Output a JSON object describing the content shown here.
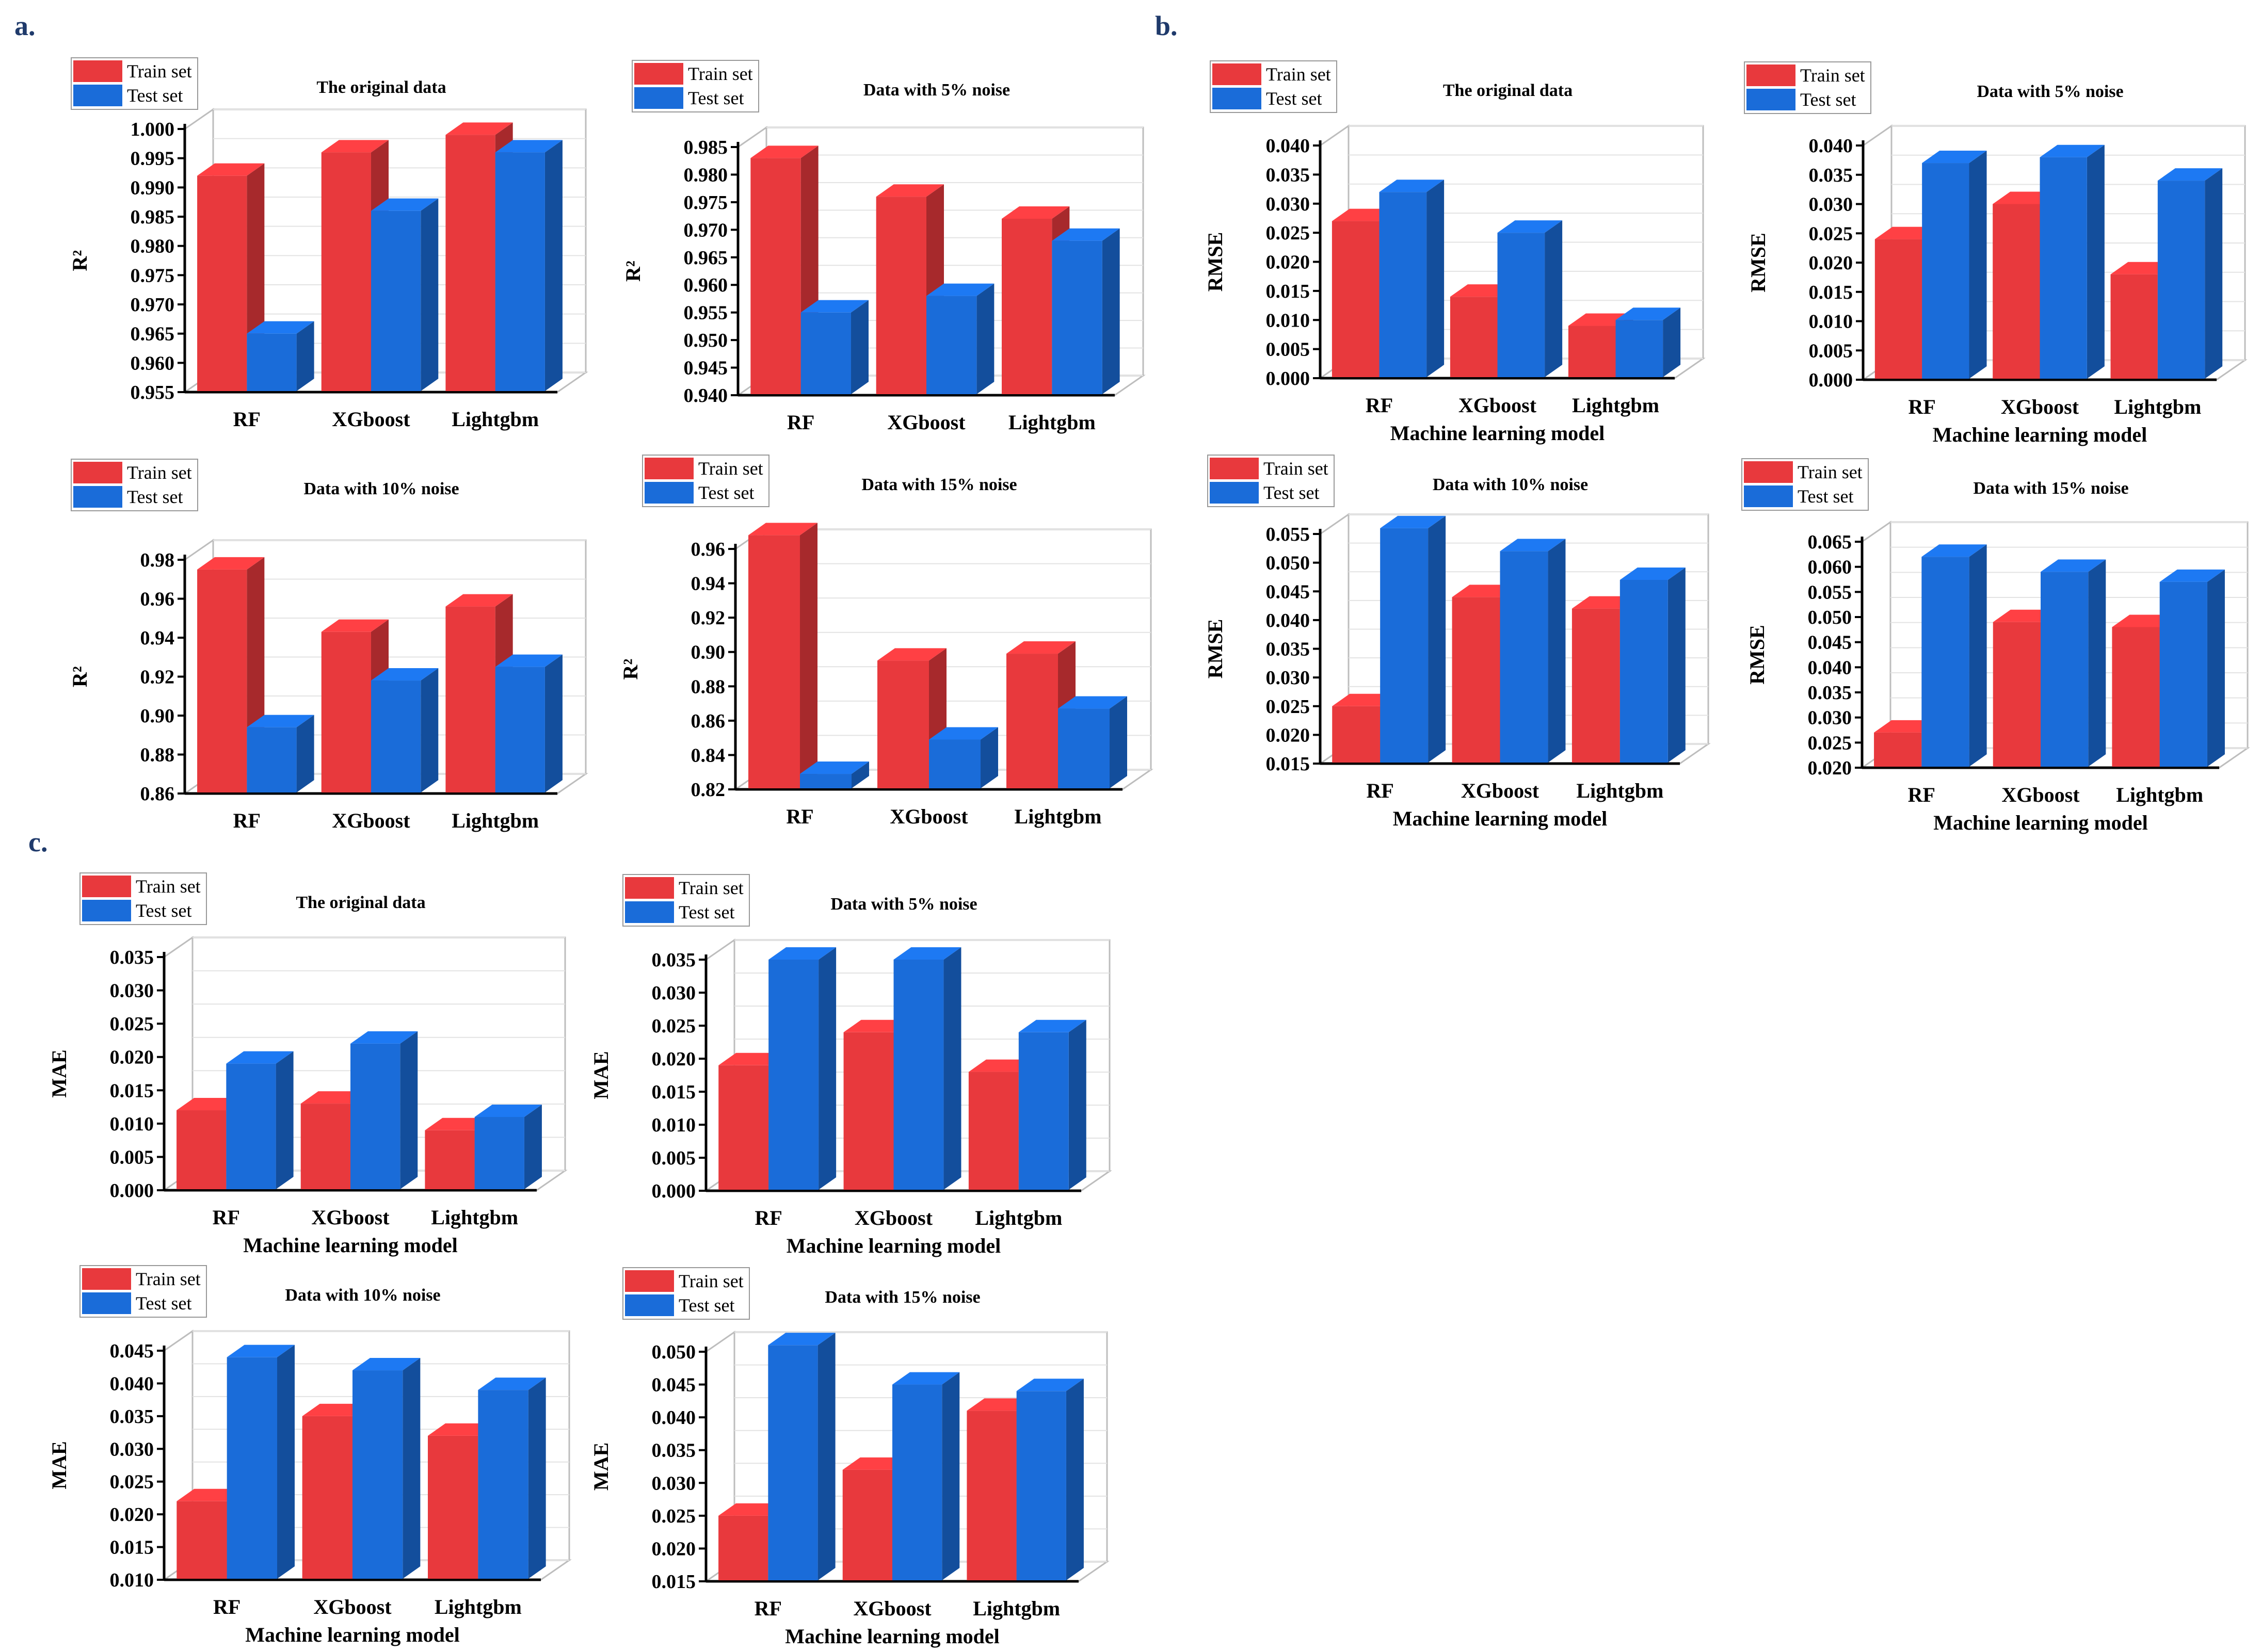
{
  "colors": {
    "train": "#E8393D",
    "test": "#1A6CD9",
    "panel_label": "#1F3A6B"
  },
  "panel_labels": [
    "a.",
    "b.",
    "c."
  ],
  "legend": {
    "train": "Train set",
    "test": "Test set"
  },
  "chart_data": [
    {
      "id": "a1",
      "type": "bar",
      "title": "The original data",
      "xlabel": "",
      "ylabel": "R²",
      "categories": [
        "RF",
        "XGboost",
        "Lightgbm"
      ],
      "ylim": [
        0.955,
        1.0
      ],
      "yticks": [
        "0.955",
        "0.960",
        "0.965",
        "0.970",
        "0.975",
        "0.980",
        "0.985",
        "0.990",
        "0.995",
        "1.000"
      ],
      "series": [
        {
          "name": "Train set",
          "values": [
            0.992,
            0.996,
            0.999
          ]
        },
        {
          "name": "Test set",
          "values": [
            0.965,
            0.986,
            0.996
          ]
        }
      ]
    },
    {
      "id": "a2",
      "type": "bar",
      "title": "Data with 5% noise",
      "xlabel": "",
      "ylabel": "R²",
      "categories": [
        "RF",
        "XGboost",
        "Lightgbm"
      ],
      "ylim": [
        0.94,
        0.985
      ],
      "yticks": [
        "0.940",
        "0.945",
        "0.950",
        "0.955",
        "0.960",
        "0.965",
        "0.970",
        "0.975",
        "0.980",
        "0.985"
      ],
      "series": [
        {
          "name": "Train set",
          "values": [
            0.983,
            0.976,
            0.972
          ]
        },
        {
          "name": "Test set",
          "values": [
            0.955,
            0.958,
            0.968
          ]
        }
      ]
    },
    {
      "id": "a3",
      "type": "bar",
      "title": "Data with 10% noise",
      "xlabel": "",
      "ylabel": "R²",
      "categories": [
        "RF",
        "XGboost",
        "Lightgbm"
      ],
      "ylim": [
        0.86,
        0.98
      ],
      "yticks": [
        "0.86",
        "0.88",
        "0.90",
        "0.92",
        "0.94",
        "0.96",
        "0.98"
      ],
      "series": [
        {
          "name": "Train set",
          "values": [
            0.975,
            0.943,
            0.956
          ]
        },
        {
          "name": "Test set",
          "values": [
            0.894,
            0.918,
            0.925
          ]
        }
      ]
    },
    {
      "id": "a4",
      "type": "bar",
      "title": "Data with 15% noise",
      "xlabel": "",
      "ylabel": "R²",
      "categories": [
        "RF",
        "XGboost",
        "Lightgbm"
      ],
      "ylim": [
        0.82,
        0.96
      ],
      "yticks": [
        "0.82",
        "0.84",
        "0.86",
        "0.88",
        "0.90",
        "0.92",
        "0.94",
        "0.96"
      ],
      "series": [
        {
          "name": "Train set",
          "values": [
            0.968,
            0.895,
            0.899
          ]
        },
        {
          "name": "Test set",
          "values": [
            0.829,
            0.849,
            0.867
          ]
        }
      ]
    },
    {
      "id": "b1",
      "type": "bar",
      "title": "The original data",
      "xlabel": "Machine learning model",
      "ylabel": "RMSE",
      "categories": [
        "RF",
        "XGboost",
        "Lightgbm"
      ],
      "ylim": [
        0,
        0.04
      ],
      "yticks": [
        "0.000",
        "0.005",
        "0.010",
        "0.015",
        "0.020",
        "0.025",
        "0.030",
        "0.035",
        "0.040"
      ],
      "series": [
        {
          "name": "Train set",
          "values": [
            0.027,
            0.014,
            0.009
          ]
        },
        {
          "name": "Test set",
          "values": [
            0.032,
            0.025,
            0.01
          ]
        }
      ]
    },
    {
      "id": "b2",
      "type": "bar",
      "title": "Data with 5% noise",
      "xlabel": "Machine learning model",
      "ylabel": "RMSE",
      "categories": [
        "RF",
        "XGboost",
        "Lightgbm"
      ],
      "ylim": [
        0,
        0.04
      ],
      "yticks": [
        "0.000",
        "0.005",
        "0.010",
        "0.015",
        "0.020",
        "0.025",
        "0.030",
        "0.035",
        "0.040"
      ],
      "series": [
        {
          "name": "Train set",
          "values": [
            0.024,
            0.03,
            0.018
          ]
        },
        {
          "name": "Test set",
          "values": [
            0.037,
            0.038,
            0.034
          ]
        }
      ]
    },
    {
      "id": "b3",
      "type": "bar",
      "title": "Data with 10% noise",
      "xlabel": "Machine learning model",
      "ylabel": "RMSE",
      "categories": [
        "RF",
        "XGboost",
        "Lightgbm"
      ],
      "ylim": [
        0.015,
        0.055
      ],
      "yticks": [
        "0.015",
        "0.020",
        "0.025",
        "0.030",
        "0.035",
        "0.040",
        "0.045",
        "0.050",
        "0.055"
      ],
      "series": [
        {
          "name": "Train set",
          "values": [
            0.025,
            0.044,
            0.042
          ]
        },
        {
          "name": "Test set",
          "values": [
            0.056,
            0.052,
            0.047
          ]
        }
      ]
    },
    {
      "id": "b4",
      "type": "bar",
      "title": "Data with 15% noise",
      "xlabel": "Machine learning model",
      "ylabel": "RMSE",
      "categories": [
        "RF",
        "XGboost",
        "Lightgbm"
      ],
      "ylim": [
        0.02,
        0.065
      ],
      "yticks": [
        "0.020",
        "0.025",
        "0.030",
        "0.035",
        "0.040",
        "0.045",
        "0.050",
        "0.055",
        "0.060",
        "0.065"
      ],
      "series": [
        {
          "name": "Train set",
          "values": [
            0.027,
            0.049,
            0.048
          ]
        },
        {
          "name": "Test set",
          "values": [
            0.062,
            0.059,
            0.057
          ]
        }
      ]
    },
    {
      "id": "c1",
      "type": "bar",
      "title": "The original data",
      "xlabel": "Machine learning model",
      "ylabel": "MAE",
      "categories": [
        "RF",
        "XGboost",
        "Lightgbm"
      ],
      "ylim": [
        0,
        0.035
      ],
      "yticks": [
        "0.000",
        "0.005",
        "0.010",
        "0.015",
        "0.020",
        "0.025",
        "0.030",
        "0.035"
      ],
      "series": [
        {
          "name": "Train set",
          "values": [
            0.012,
            0.013,
            0.009
          ]
        },
        {
          "name": "Test set",
          "values": [
            0.019,
            0.022,
            0.011
          ]
        }
      ]
    },
    {
      "id": "c2",
      "type": "bar",
      "title": "Data with 5% noise",
      "xlabel": "Machine learning model",
      "ylabel": "MAE",
      "categories": [
        "RF",
        "XGboost",
        "Lightgbm"
      ],
      "ylim": [
        0,
        0.035
      ],
      "yticks": [
        "0.000",
        "0.005",
        "0.010",
        "0.015",
        "0.020",
        "0.025",
        "0.030",
        "0.035"
      ],
      "series": [
        {
          "name": "Train set",
          "values": [
            0.019,
            0.024,
            0.018
          ]
        },
        {
          "name": "Test set",
          "values": [
            0.035,
            0.035,
            0.024
          ]
        }
      ]
    },
    {
      "id": "c3",
      "type": "bar",
      "title": "Data with 10% noise",
      "xlabel": "Machine learning model",
      "ylabel": "MAE",
      "categories": [
        "RF",
        "XGboost",
        "Lightgbm"
      ],
      "ylim": [
        0.01,
        0.045
      ],
      "yticks": [
        "0.010",
        "0.015",
        "0.020",
        "0.025",
        "0.030",
        "0.035",
        "0.040",
        "0.045"
      ],
      "series": [
        {
          "name": "Train set",
          "values": [
            0.022,
            0.035,
            0.032
          ]
        },
        {
          "name": "Test set",
          "values": [
            0.044,
            0.042,
            0.039
          ]
        }
      ]
    },
    {
      "id": "c4",
      "type": "bar",
      "title": "Data with 15% noise",
      "xlabel": "Machine learning model",
      "ylabel": "MAE",
      "categories": [
        "RF",
        "XGboost",
        "Lightgbm"
      ],
      "ylim": [
        0.015,
        0.05
      ],
      "yticks": [
        "0.015",
        "0.020",
        "0.025",
        "0.030",
        "0.035",
        "0.040",
        "0.045",
        "0.050"
      ],
      "series": [
        {
          "name": "Train set",
          "values": [
            0.025,
            0.032,
            0.041
          ]
        },
        {
          "name": "Test set",
          "values": [
            0.051,
            0.045,
            0.044
          ]
        }
      ]
    }
  ]
}
